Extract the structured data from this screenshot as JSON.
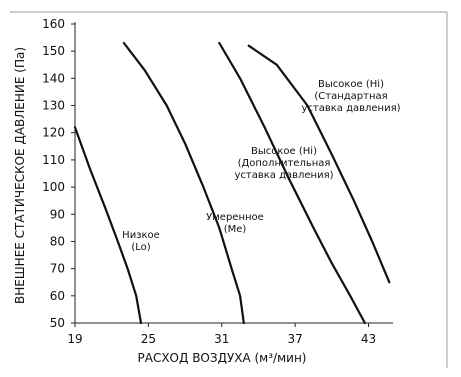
{
  "chart_data": {
    "type": "line",
    "xlabel": "РАСХОД ВОЗДУХА (м³/мин)",
    "ylabel": "ВНЕШНЕЕ СТАТИЧЕСКОЕ ДАВЛЕНИЕ (Па)",
    "xlim": [
      19,
      45
    ],
    "ylim": [
      50,
      160
    ],
    "x_ticks": [
      19,
      25,
      31,
      37,
      43
    ],
    "y_ticks": [
      50,
      60,
      70,
      80,
      90,
      100,
      110,
      120,
      130,
      140,
      150,
      160
    ],
    "grid": false,
    "series": [
      {
        "name": "Низкое (Lo)",
        "points": [
          [
            19.0,
            122
          ],
          [
            20.2,
            107
          ],
          [
            21.5,
            92
          ],
          [
            22.5,
            80
          ],
          [
            23.3,
            70
          ],
          [
            24.0,
            60
          ],
          [
            24.4,
            50
          ]
        ]
      },
      {
        "name": "Умеренное (Me)",
        "points": [
          [
            23.0,
            153
          ],
          [
            24.7,
            143
          ],
          [
            26.5,
            130
          ],
          [
            28.0,
            116
          ],
          [
            29.5,
            100
          ],
          [
            30.8,
            85
          ],
          [
            31.8,
            70
          ],
          [
            32.5,
            60
          ],
          [
            32.8,
            50
          ]
        ]
      },
      {
        "name": "Высокое (Hi) (Дополнительная уставка давления)",
        "points": [
          [
            30.8,
            153
          ],
          [
            32.5,
            140
          ],
          [
            34.5,
            122
          ],
          [
            36.5,
            103
          ],
          [
            38.5,
            85
          ],
          [
            40.0,
            72
          ],
          [
            41.5,
            60
          ],
          [
            42.7,
            50
          ]
        ]
      },
      {
        "name": "Высокое (Hi) (Стандартная уставка давления)",
        "points": [
          [
            33.2,
            152
          ],
          [
            35.5,
            145
          ],
          [
            38.0,
            130
          ],
          [
            40.0,
            112
          ],
          [
            41.8,
            95
          ],
          [
            43.3,
            80
          ],
          [
            44.7,
            65
          ]
        ]
      }
    ],
    "annotations": [
      {
        "lines": [
          "Низкое",
          "(Lo)"
        ]
      },
      {
        "lines": [
          "Умеренное",
          "(Me)"
        ]
      },
      {
        "lines": [
          "Высокое (Hi)",
          "(Дополнительная",
          "уставка давления)"
        ]
      },
      {
        "lines": [
          "Высокое (Hi)",
          "(Стандартная",
          "уставка давления)"
        ]
      }
    ]
  }
}
